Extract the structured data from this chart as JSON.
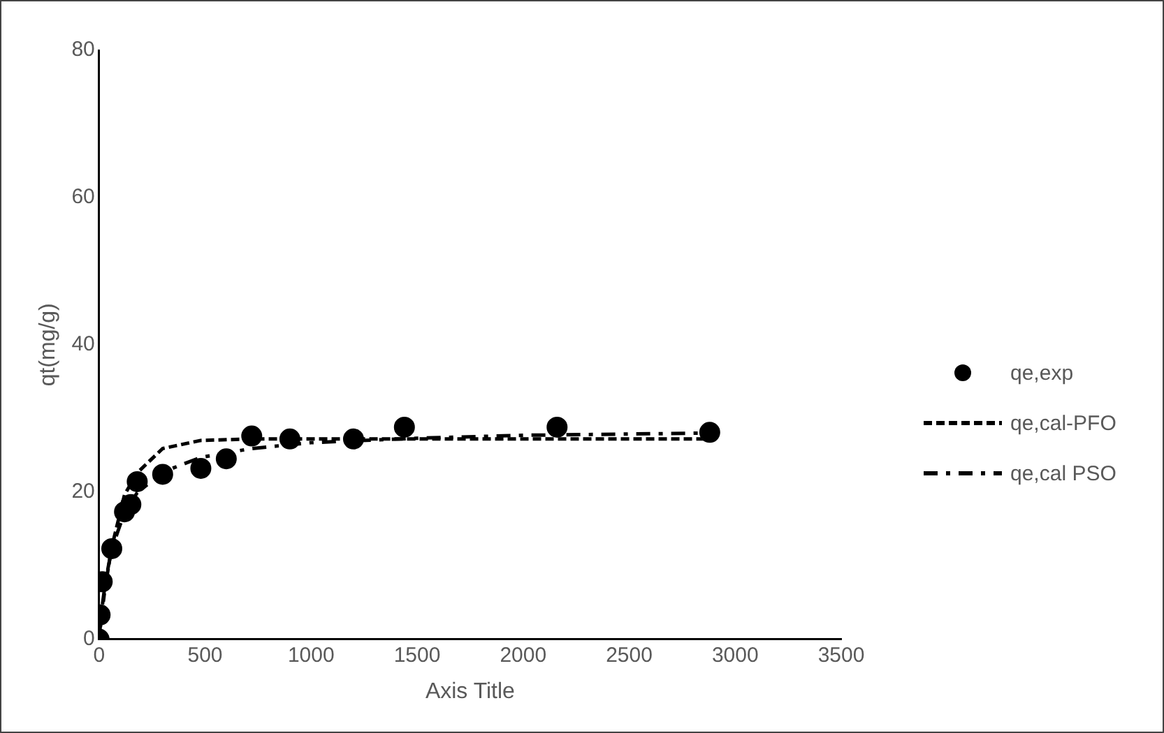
{
  "chart_data": {
    "type": "scatter",
    "xlabel": "Axis Title",
    "ylabel": "qt(mg/g)",
    "xlim": [
      0,
      3500
    ],
    "xticks": [
      0,
      500,
      1000,
      1500,
      2000,
      2500,
      3000,
      3500
    ],
    "ylim": [
      0,
      80
    ],
    "yticks": [
      0,
      20,
      40,
      60,
      80
    ],
    "grid": false,
    "legend": "right",
    "series": [
      {
        "name": "qe,exp",
        "type": "scatter",
        "marker": "circle",
        "color": "#000000",
        "x": [
          0,
          5,
          15,
          60,
          120,
          150,
          180,
          300,
          480,
          600,
          720,
          900,
          1200,
          1440,
          2160,
          2880
        ],
        "values": [
          0,
          3.3,
          7.8,
          12.3,
          17.3,
          18.3,
          21.4,
          22.4,
          23.2,
          24.5,
          27.6,
          27.2,
          27.2,
          28.8,
          28.8,
          28.1
        ]
      },
      {
        "name": "qe,cal-PFO",
        "type": "line",
        "marker": "none",
        "line_style": "dashed",
        "color": "#000000",
        "x": [
          0,
          15,
          30,
          60,
          120,
          180,
          300,
          480,
          720,
          1000,
          2880
        ],
        "values": [
          0,
          3.9,
          7.3,
          12.5,
          19.6,
          22.6,
          25.9,
          27,
          27.2,
          27.2,
          27.2
        ]
      },
      {
        "name": "qe,cal PSO",
        "type": "line",
        "marker": "none",
        "line_style": "dashdot",
        "color": "#000000",
        "x": [
          0,
          15,
          30,
          60,
          120,
          180,
          300,
          480,
          720,
          1000,
          1500,
          2000,
          2880
        ],
        "values": [
          0,
          4.5,
          7.8,
          12.3,
          17.2,
          19.9,
          22.7,
          24.7,
          25.9,
          26.7,
          27.3,
          27.7,
          28
        ]
      }
    ]
  }
}
